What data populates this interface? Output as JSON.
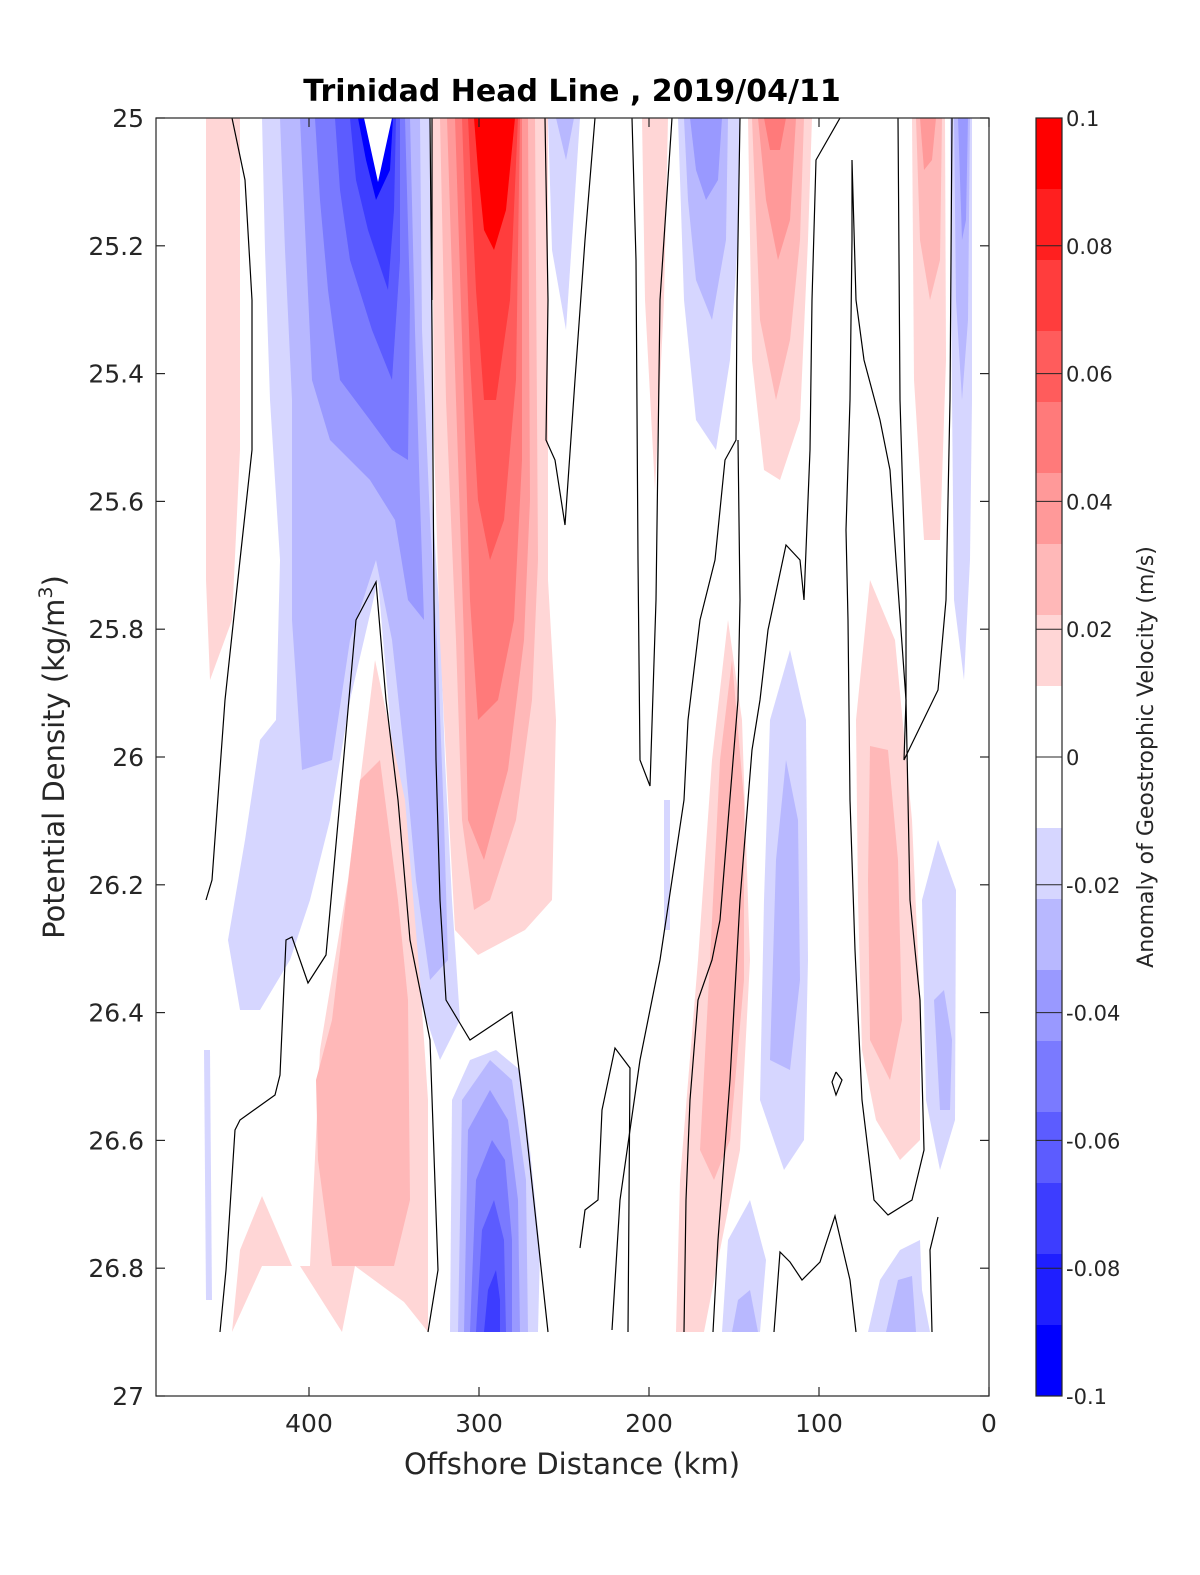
{
  "chart_data": {
    "type": "heatmap",
    "title": "Trinidad Head Line , 2019/04/11",
    "xlabel": "Offshore Distance (km)",
    "ylabel": "Potential Density (kg/m",
    "ylabel_sup": "3",
    "ylabel_end": ")",
    "colorbar_label": "Anomaly of Geostrophic Velocity (m/s)",
    "xlim": [
      490,
      0
    ],
    "ylim": [
      25,
      27
    ],
    "y_reversed": true,
    "x_ticks": [
      400,
      300,
      200,
      100,
      0
    ],
    "x_tick_labels": [
      "400",
      "300",
      "200",
      "100",
      "0"
    ],
    "y_ticks": [
      25,
      25.2,
      25.4,
      25.6,
      25.8,
      26,
      26.2,
      26.4,
      26.6,
      26.8,
      27
    ],
    "y_tick_labels": [
      "25",
      "25.2",
      "25.4",
      "25.6",
      "25.8",
      "26",
      "26.2",
      "26.4",
      "26.6",
      "26.8",
      "27"
    ],
    "colorbar_ticks": [
      0.1,
      0.08,
      0.06,
      0.04,
      0.02,
      0,
      -0.02,
      -0.04,
      -0.06,
      -0.08,
      -0.1
    ],
    "colorbar_tick_labels": [
      "0.1",
      "0.08",
      "0.06",
      "0.04",
      "0.02",
      "0",
      "-0.02",
      "-0.04",
      "-0.06",
      "-0.08",
      "-0.1"
    ],
    "colorbar_levels": [
      "#ff0000",
      "#ff1f1f",
      "#ff3d3d",
      "#ff5c5c",
      "#ff7a7a",
      "#ff9999",
      "#ffb8b8",
      "#ffd6d6",
      "#ffffff",
      "#ffffff",
      "#d6d6ff",
      "#b8b8ff",
      "#9999ff",
      "#7a7aff",
      "#5c5cff",
      "#3d3dff",
      "#1f1fff",
      "#0000ff"
    ],
    "colormap": "blue-white-red diverging",
    "clim": [
      -0.1,
      0.1
    ],
    "data_x_range": [
      462,
      12
    ],
    "data_y_range": [
      25,
      26.9
    ],
    "features": [
      {
        "x": 455,
        "y0": 25.0,
        "y1": 25.85,
        "peak": 0.02
      },
      {
        "x": 375,
        "y0": 25.0,
        "y1": 26.35,
        "peak": -0.06
      },
      {
        "x": 360,
        "y0": 25.0,
        "y1": 25.6,
        "peak": -0.1
      },
      {
        "x": 372,
        "y0": 25.9,
        "y1": 26.9,
        "peak": 0.04
      },
      {
        "x": 290,
        "y0": 25.0,
        "y1": 26.3,
        "peak": 0.1
      },
      {
        "x": 290,
        "y0": 26.45,
        "y1": 26.9,
        "peak": -0.08
      },
      {
        "x": 255,
        "y0": 25.0,
        "y1": 25.35,
        "peak": -0.03
      },
      {
        "x": 195,
        "y0": 25.0,
        "y1": 25.55,
        "peak": 0.02
      },
      {
        "x": 160,
        "y0": 25.0,
        "y1": 25.45,
        "peak": -0.04
      },
      {
        "x": 150,
        "y0": 25.8,
        "y1": 26.9,
        "peak": 0.03
      },
      {
        "x": 120,
        "y0": 25.0,
        "y1": 25.5,
        "peak": 0.05
      },
      {
        "x": 120,
        "y0": 25.95,
        "y1": 26.6,
        "peak": -0.04
      },
      {
        "x": 55,
        "y0": 25.8,
        "y1": 26.6,
        "peak": 0.03
      },
      {
        "x": 35,
        "y0": 25.0,
        "y1": 25.6,
        "peak": 0.04
      },
      {
        "x": 15,
        "y0": 25.0,
        "y1": 25.8,
        "peak": -0.05
      },
      {
        "x": 25,
        "y0": 26.2,
        "y1": 26.6,
        "peak": -0.03
      },
      {
        "x": 50,
        "y0": 26.75,
        "y1": 26.9,
        "peak": -0.04
      },
      {
        "x": 155,
        "y0": 26.75,
        "y1": 26.9,
        "peak": -0.03
      }
    ]
  }
}
